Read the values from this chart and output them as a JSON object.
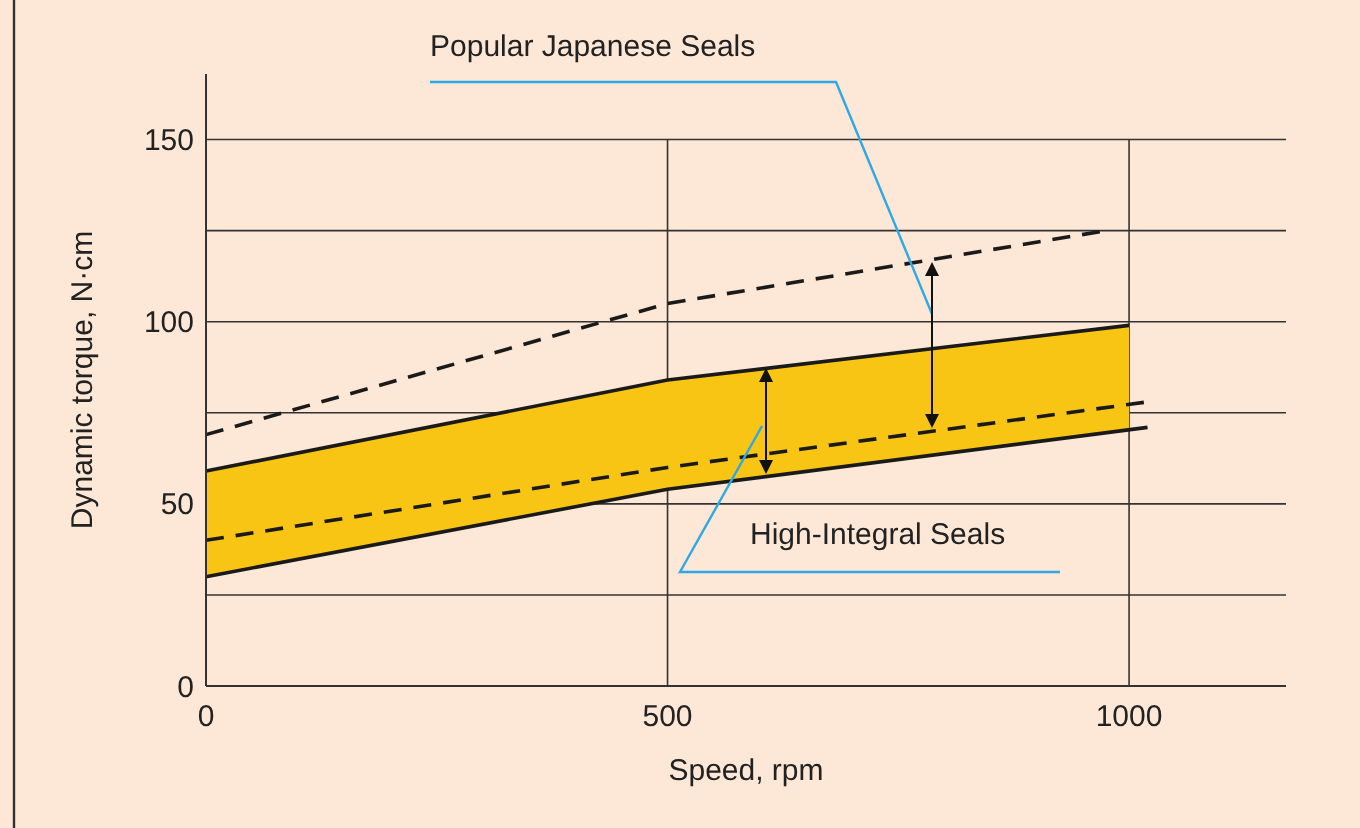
{
  "chart_data": {
    "type": "line",
    "xlabel": "Speed, rpm",
    "ylabel": "Dynamic torque, N·cm",
    "xlim": [
      0,
      1170
    ],
    "xticks": [
      0,
      500,
      1000
    ],
    "ylim": [
      0,
      168
    ],
    "yticks": [
      0,
      {
        "value": 25,
        "label": null
      },
      50,
      {
        "value": 75,
        "label": null
      },
      100,
      {
        "value": 125,
        "label": null
      },
      150
    ],
    "grid": true,
    "series": [
      {
        "color": "#1a1a1a",
        "x": [
          0,
          500,
          1000
        ],
        "values": [
          59,
          84,
          99
        ],
        "lower": [
          30,
          54,
          70
        ],
        "upper": [
          59,
          84,
          99
        ],
        "line_style": "solid"
      },
      {
        "color": "#1a1a1a",
        "x": [
          0,
          500,
          1020
        ],
        "values": [
          30,
          54,
          71
        ],
        "line_style": "solid"
      },
      {
        "color": "#1a1a1a",
        "x": [
          0,
          500,
          975
        ],
        "values": [
          69,
          105,
          125
        ],
        "line_style": "dashed"
      },
      {
        "color": "#1a1a1a",
        "x": [
          0,
          500,
          1020
        ],
        "values": [
          40,
          60,
          78
        ],
        "line_style": "dashed"
      }
    ],
    "annotations": [
      "Popular Japanese Seals",
      "High-Integral Seals"
    ]
  }
}
